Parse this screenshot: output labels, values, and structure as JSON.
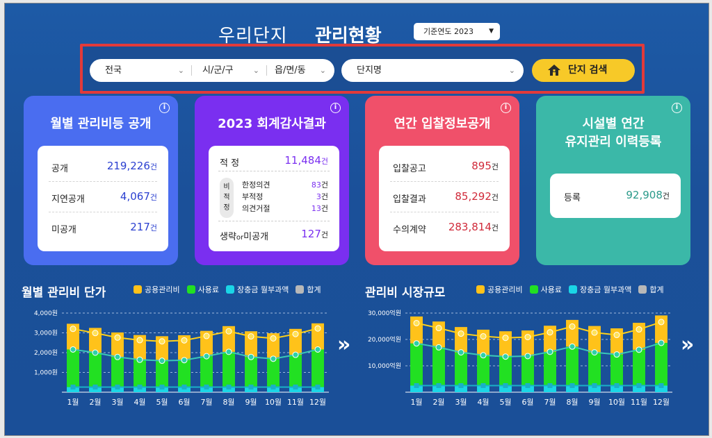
{
  "header": {
    "title_light": "우리단지",
    "title_bold": "관리현황",
    "year_select": "기준연도 2023"
  },
  "search": {
    "region": "전국",
    "city": "시/군/구",
    "town": "읍/면/동",
    "complex": "단지명",
    "button": "단지 검색"
  },
  "cards": [
    {
      "title": "월별 관리비등 공개",
      "info": "i",
      "rows": [
        {
          "label": "공개",
          "value": "219,226",
          "unit": "건"
        },
        {
          "label": "지연공개",
          "value": "4,067",
          "unit": "건"
        },
        {
          "label": "미공개",
          "value": "217",
          "unit": "건"
        }
      ]
    },
    {
      "title": "2023 회계감사결과",
      "info": "i",
      "top": {
        "label": "적 정",
        "value": "11,484",
        "unit": "건"
      },
      "side": "비\n적\n정",
      "mid": [
        {
          "label": "한정의견",
          "value": "83",
          "unit": "건"
        },
        {
          "label": "부적정",
          "value": "3",
          "unit": "건"
        },
        {
          "label": "의견거절",
          "value": "13",
          "unit": "건"
        }
      ],
      "bottom": {
        "label1": "생략",
        "label2": "or",
        "label3": "미공개",
        "value": "127",
        "unit": "건"
      }
    },
    {
      "title": "연간 입찰정보공개",
      "info": "i",
      "rows": [
        {
          "label": "입찰공고",
          "value": "895",
          "unit": "건"
        },
        {
          "label": "입찰결과",
          "value": "85,292",
          "unit": "건"
        },
        {
          "label": "수의계약",
          "value": "283,814",
          "unit": "건"
        }
      ]
    },
    {
      "title1": "시설별 연간",
      "title2": "유지관리 이력등록",
      "info": "i",
      "rows": [
        {
          "label": "등록",
          "value": "92,908",
          "unit": "건"
        }
      ]
    }
  ],
  "colors": {
    "card1": "#4a6df0",
    "card2": "#7a2ff0",
    "card3": "#f0506a",
    "card4": "#3bb8a8",
    "common": "#ffc21a",
    "usage": "#22e022",
    "ltr": "#1ad6e6",
    "total": "#b8b8b8"
  },
  "legend": [
    "공용관리비",
    "사용료",
    "장충금 월부과액",
    "합계"
  ],
  "chart_data": [
    {
      "type": "bar",
      "title": "월별 관리비 단가",
      "categories": [
        "1월",
        "2월",
        "3월",
        "4월",
        "5월",
        "6월",
        "7월",
        "8월",
        "9월",
        "10월",
        "11월",
        "12월"
      ],
      "y_ticks": [
        "4,000원",
        "3,000원",
        "2,000원",
        "1,000원"
      ],
      "ylim": [
        0,
        4000
      ],
      "series": [
        {
          "name": "장충금 월부과액",
          "values": [
            260,
            260,
            260,
            260,
            260,
            260,
            260,
            260,
            260,
            260,
            260,
            260
          ]
        },
        {
          "name": "사용료",
          "values": [
            1900,
            1740,
            1520,
            1380,
            1330,
            1360,
            1560,
            1780,
            1520,
            1430,
            1630,
            1900
          ]
        },
        {
          "name": "공용관리비",
          "values": [
            1300,
            1250,
            1240,
            1250,
            1240,
            1260,
            1280,
            1300,
            1300,
            1290,
            1310,
            1320
          ]
        },
        {
          "name": "합계",
          "values": [
            3200,
            2990,
            2760,
            2630,
            2570,
            2620,
            2840,
            3080,
            2820,
            2720,
            2940,
            3220
          ]
        }
      ]
    },
    {
      "type": "bar",
      "title": "관리비 시장규모",
      "categories": [
        "1월",
        "2월",
        "3월",
        "4월",
        "5월",
        "6월",
        "7월",
        "8월",
        "9월",
        "10월",
        "11월",
        "12월"
      ],
      "y_ticks": [
        "30,000억원",
        "20,000억원",
        "10,000억원"
      ],
      "ylim": [
        0,
        30000
      ],
      "series": [
        {
          "name": "장충금 월부과액",
          "values": [
            2500,
            2500,
            2500,
            2500,
            2500,
            2500,
            2500,
            2500,
            2500,
            2500,
            2500,
            2500
          ]
        },
        {
          "name": "사용료",
          "values": [
            16000,
            14500,
            12600,
            11500,
            11000,
            11200,
            12800,
            14800,
            12600,
            11800,
            13600,
            16200
          ]
        },
        {
          "name": "공용관리비",
          "values": [
            10200,
            9800,
            9600,
            9700,
            9600,
            9700,
            9900,
            10100,
            10000,
            9900,
            10200,
            10400
          ]
        },
        {
          "name": "합계",
          "values": [
            26200,
            24300,
            22200,
            21200,
            20600,
            20900,
            22700,
            24900,
            22600,
            21700,
            23800,
            26600
          ]
        }
      ]
    }
  ]
}
